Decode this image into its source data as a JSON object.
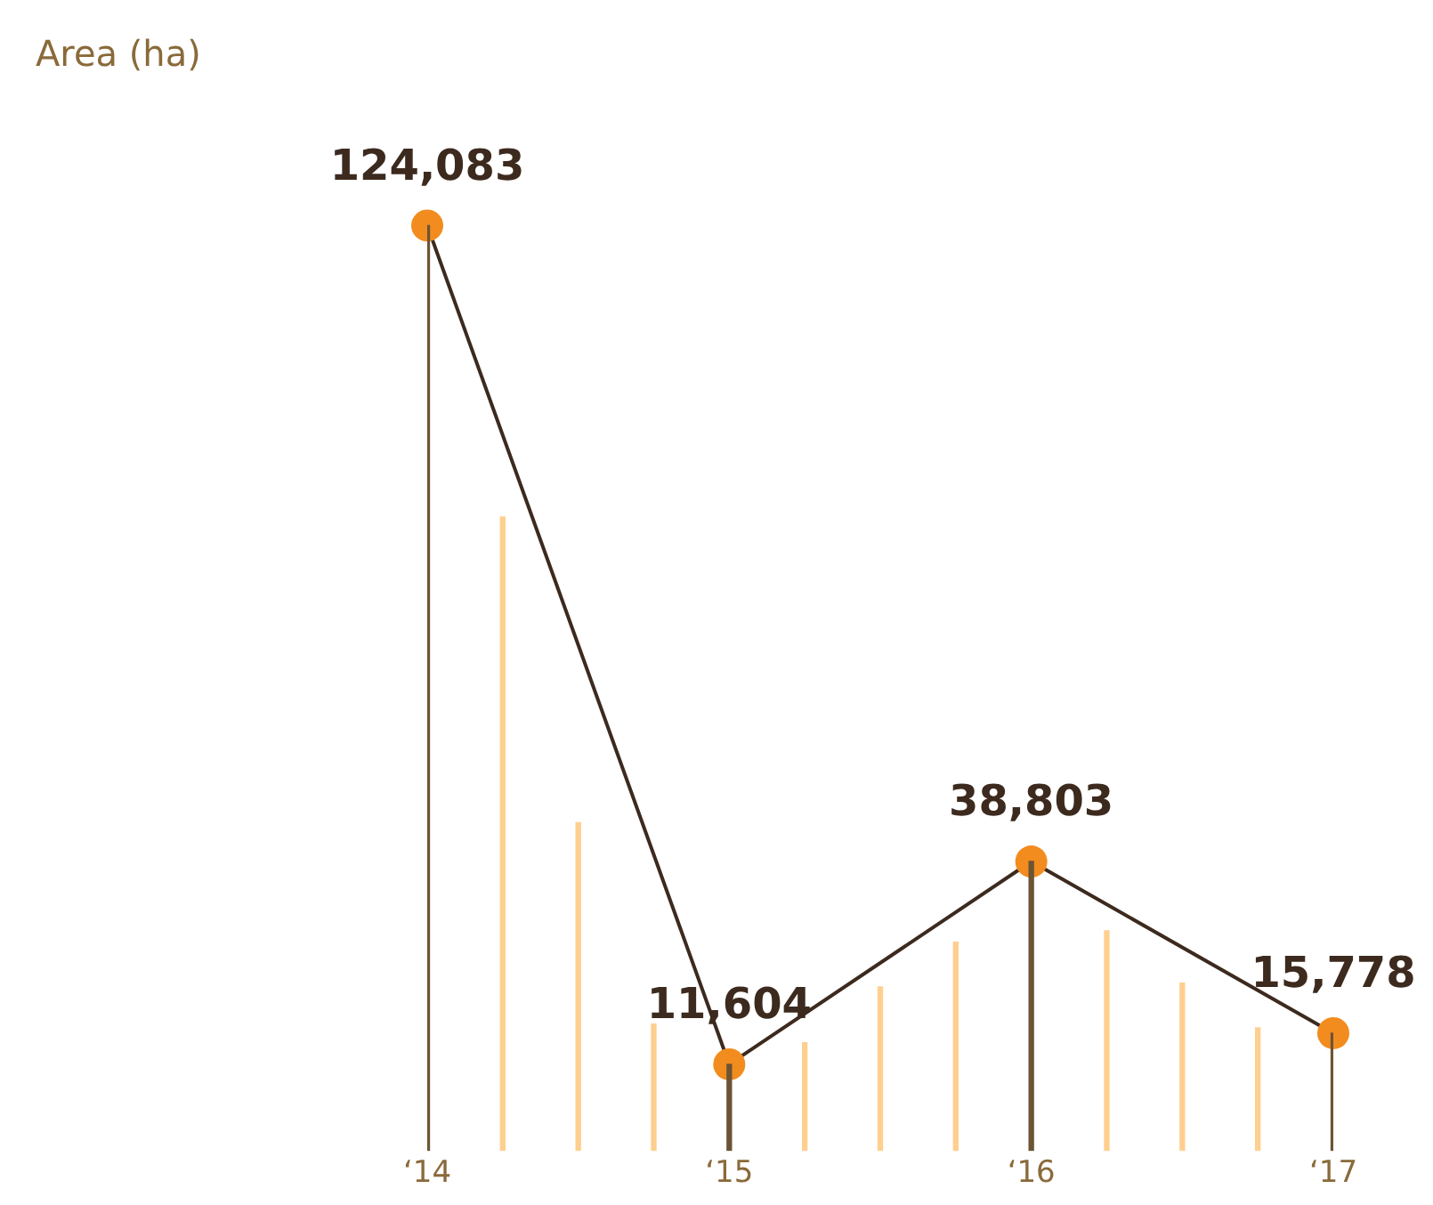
{
  "chart_data": {
    "type": "line",
    "annotations": [
      "Area (ha)"
    ],
    "categories": [
      "‘14",
      null,
      null,
      null,
      "‘15",
      null,
      null,
      null,
      "‘16",
      null,
      null,
      null,
      "‘17"
    ],
    "grid": false,
    "legend": false,
    "tick_labels": "x",
    "series": [
      {
        "type": "bar",
        "values": [
          124083,
          85000,
          44000,
          17000,
          11604,
          14500,
          22000,
          28000,
          38803,
          29500,
          22500,
          16500,
          15778
        ],
        "colors": [
          "#6b5434",
          "#ffcf8f",
          "#ffcf8f",
          "#ffcf8f",
          "#6b5434",
          "#ffcf8f",
          "#ffcf8f",
          "#ffcf8f",
          "#6b5434",
          "#ffcf8f",
          "#ffcf8f",
          "#ffcf8f",
          "#6b5434"
        ]
      },
      {
        "color": "#3d2a1e",
        "marker": "circle",
        "colors": [
          "#f28c1e",
          null,
          null,
          null,
          "#f28c1e",
          null,
          null,
          null,
          "#f28c1e",
          null,
          null,
          null,
          "#f28c1e"
        ],
        "values": [
          124083,
          null,
          null,
          null,
          11604,
          null,
          null,
          null,
          38803,
          null,
          null,
          null,
          15778
        ],
        "value_labels": [
          "124,083",
          null,
          null,
          null,
          "11,604",
          null,
          null,
          null,
          "38,803",
          null,
          null,
          null,
          "15,778"
        ]
      }
    ]
  }
}
